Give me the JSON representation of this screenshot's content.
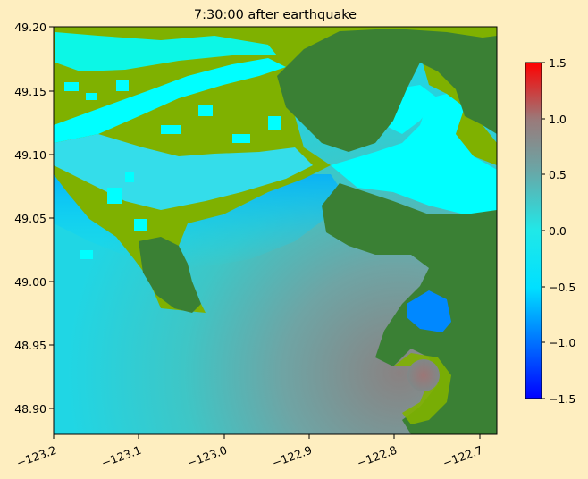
{
  "title": "7:30:00 after earthquake",
  "map": {
    "x_ticks": [
      "−123.2",
      "−123.1",
      "−123.0",
      "−122.9",
      "−122.8",
      "−122.7"
    ],
    "y_ticks": [
      "49.20",
      "49.15",
      "49.10",
      "49.05",
      "49.00",
      "48.95",
      "48.90"
    ],
    "xlim": [
      -123.2,
      -122.69
    ],
    "ylim": [
      48.88,
      49.2
    ],
    "colors": {
      "land_high": "#3A8034",
      "land_low": "#7FB100",
      "water_wet": "#00FFFF",
      "background": "#FEEEC0"
    }
  },
  "colorbar": {
    "ticks": [
      "1.5",
      "1.0",
      "0.5",
      "0.0",
      "−0.5",
      "−1.0",
      "−1.5"
    ],
    "range": [
      -1.5,
      1.5
    ],
    "colors": [
      "#0000FF",
      "#00FFFF",
      "#808080",
      "#FF0000"
    ]
  }
}
